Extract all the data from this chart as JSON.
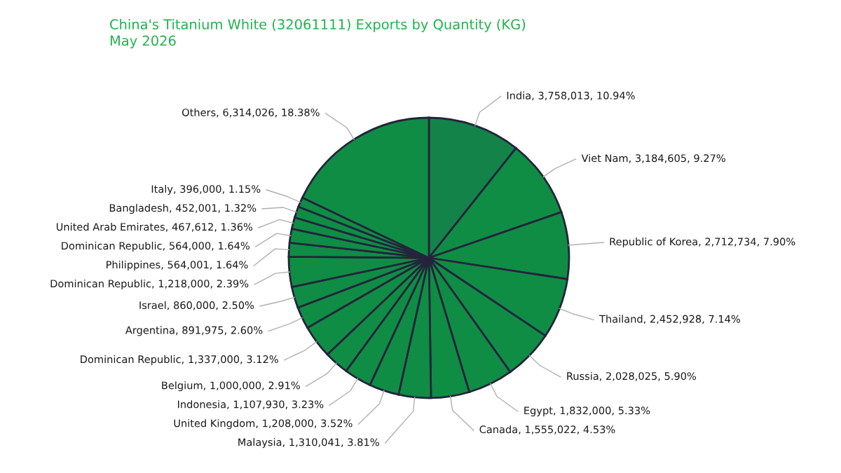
{
  "chart_data": {
    "type": "pie",
    "title": "China's Titanium White (32061111) Exports by Quantity (KG)\nMay 2026",
    "categories": [
      "India",
      "Viet Nam",
      "Republic of Korea",
      "Thailand",
      "Russia",
      "Egypt",
      "Canada",
      "Malaysia",
      "United Kingdom",
      "Indonesia",
      "Belgium",
      "Dominican Republic",
      "Argentina",
      "Israel",
      "Dominican Republic",
      "Philippines",
      "Dominican Republic",
      "United Arab Emirates",
      "Bangladesh",
      "Italy",
      "Others"
    ],
    "values": [
      3758013,
      3184605,
      2712734,
      2452928,
      2028025,
      1832000,
      1555022,
      1310041,
      1208000,
      1107930,
      1000000,
      1337000,
      891975,
      860000,
      1218000,
      564001,
      564000,
      467612,
      452001,
      396000,
      6314026
    ],
    "value_labels": [
      "3,758,013, 10.94%",
      "3,184,605, 9.27%",
      "2,712,734, 7.90%",
      "2,452,928, 7.14%",
      "2,028,025, 5.90%",
      "1,832,000, 5.33%",
      "1,555,022, 4.53%",
      "1,310,041, 3.81%",
      "1,208,000, 3.52%",
      "1,107,930, 3.23%",
      "1,000,000, 2.91%",
      "1,337,000, 3.12%",
      "891,975, 2.60%",
      "860,000, 2.50%",
      "1,218,000, 2.39%",
      "564,001, 1.64%",
      "564,000, 1.64%",
      "467,612, 1.36%",
      "452,001, 1.32%",
      "396,000, 1.15%",
      "6,314,026, 18.38%"
    ],
    "colors": [
      "#13834a",
      "#0f8d45",
      "#0f8d45",
      "#0f8d45",
      "#0f8d45",
      "#0f8d45",
      "#0f8d45",
      "#0f8d45",
      "#0f8d45",
      "#0f8d45",
      "#0f8d45",
      "#0f8d45",
      "#0f8d45",
      "#0f8d45",
      "#0f8d45",
      "#0f8d45",
      "#0f8d45",
      "#0f8d45",
      "#0f8d45",
      "#0f8d45",
      "#0f8d45"
    ],
    "legend": false
  }
}
